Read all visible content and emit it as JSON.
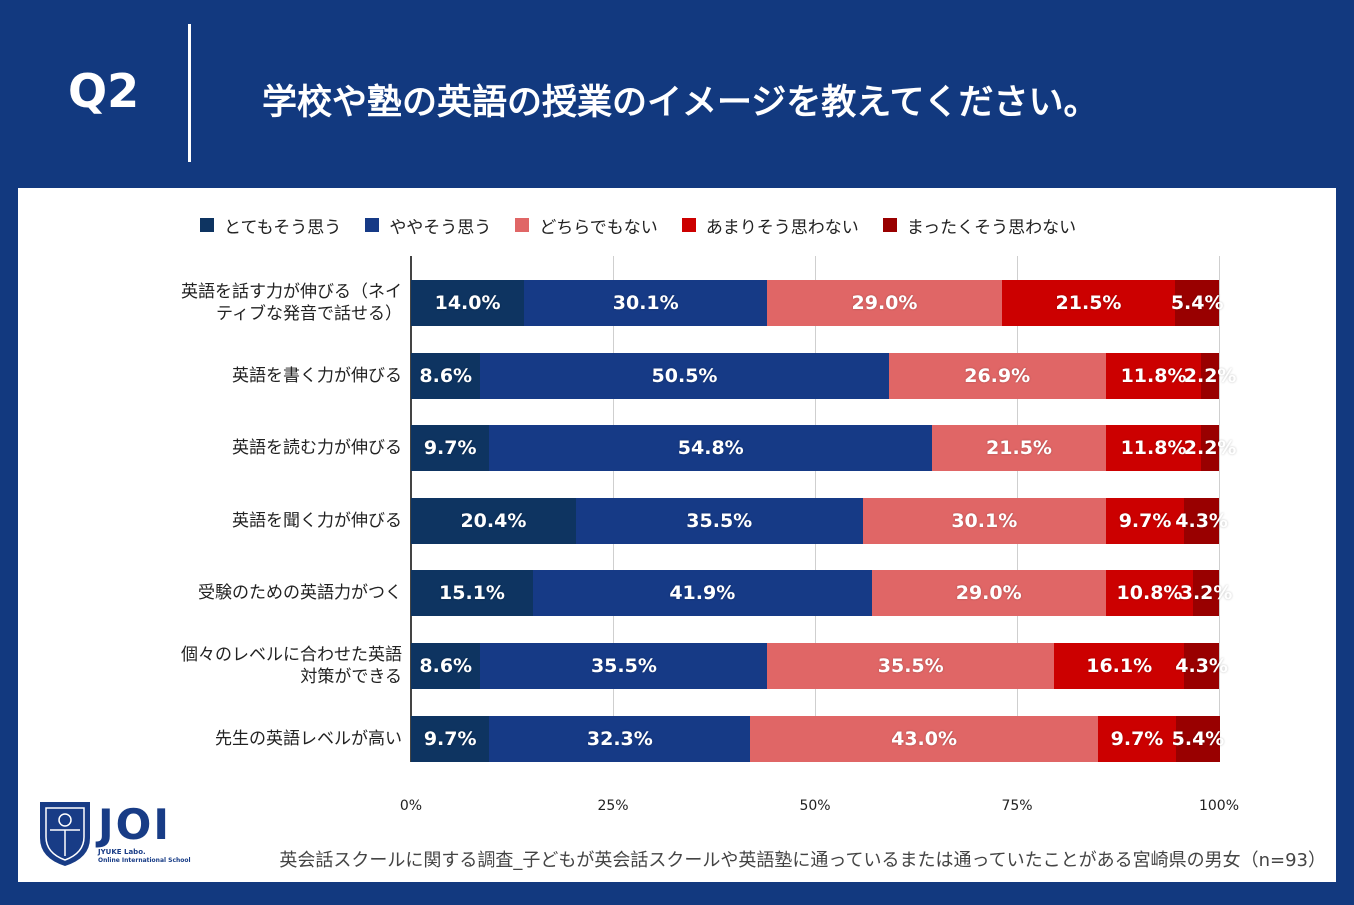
{
  "header": {
    "question": "Q2",
    "title": "学校や塾の英語の授業のイメージを教えてください。"
  },
  "colors": {
    "background": "#12397f",
    "panel": "#ffffff"
  },
  "chart_data": {
    "type": "bar",
    "orientation": "horizontal",
    "stacked": true,
    "categories": [
      "英語を話す力が伸びる（ネイティブな発音で話せる）",
      "英語を書く力が伸びる",
      "英語を読む力が伸びる",
      "英語を聞く力が伸びる",
      "受験のための英語力がつく",
      "個々のレベルに合わせた英語対策ができる",
      "先生の英語レベルが高い"
    ],
    "category_lines": [
      [
        "英語を話す力が伸びる（ネイ",
        "ティブな発音で話せる）"
      ],
      [
        "英語を書く力が伸びる"
      ],
      [
        "英語を読む力が伸びる"
      ],
      [
        "英語を聞く力が伸びる"
      ],
      [
        "受験のための英語力がつく"
      ],
      [
        "個々のレベルに合わせた英語",
        "対策ができる"
      ],
      [
        "先生の英語レベルが高い"
      ]
    ],
    "series": [
      {
        "name": "とてもそう思う",
        "color": "#0e3461",
        "values": [
          14.0,
          8.6,
          9.7,
          20.4,
          15.1,
          8.6,
          9.7
        ]
      },
      {
        "name": "ややそう思う",
        "color": "#163a86",
        "values": [
          30.1,
          50.5,
          54.8,
          35.5,
          41.9,
          35.5,
          32.3
        ]
      },
      {
        "name": "どちらでもない",
        "color": "#e06666",
        "values": [
          29.0,
          26.9,
          21.5,
          30.1,
          29.0,
          35.5,
          43.0
        ]
      },
      {
        "name": "あまりそう思わない",
        "color": "#cc0000",
        "values": [
          21.5,
          11.8,
          11.8,
          9.7,
          10.8,
          16.1,
          9.7
        ]
      },
      {
        "name": "まったくそう思わない",
        "color": "#990000",
        "values": [
          5.4,
          2.2,
          2.2,
          4.3,
          3.2,
          4.3,
          5.4
        ]
      }
    ],
    "xlim": [
      0,
      100
    ],
    "xticks": [
      "0%",
      "25%",
      "50%",
      "75%",
      "100%"
    ],
    "value_suffix": "%",
    "legend_position": "top",
    "grid": true
  },
  "logo": {
    "text": "JOI",
    "sub1": "JYUKE Labo.",
    "sub2": "Online International School"
  },
  "footnote": "英会話スクールに関する調査_子どもが英会話スクールや英語塾に通っているまたは通っていたことがある宮崎県の男女（n=93）"
}
